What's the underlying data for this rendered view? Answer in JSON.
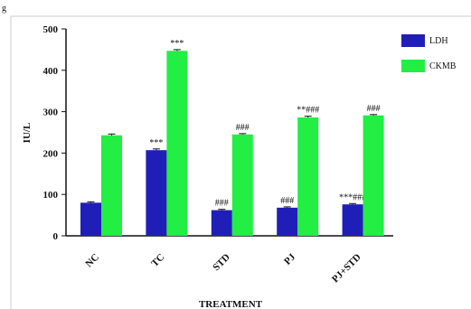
{
  "chart_data": {
    "type": "bar",
    "categories": [
      "NC",
      "TC",
      "STD",
      "PJ",
      "PJ+STD"
    ],
    "series": [
      {
        "name": "LDH",
        "color": "#1f1fb8",
        "values": [
          80,
          207,
          62,
          68,
          76
        ],
        "errors": [
          2,
          3,
          2,
          2,
          2
        ],
        "annotations": [
          "",
          "***",
          "###",
          "###",
          "***###"
        ]
      },
      {
        "name": "CKMB",
        "color": "#22ee44",
        "values": [
          243,
          447,
          245,
          286,
          291
        ],
        "errors": [
          3,
          3,
          2,
          3,
          2
        ],
        "annotations": [
          "",
          "***",
          "###",
          "**###",
          "###"
        ]
      }
    ],
    "xlabel": "TREATMENT",
    "ylabel": "IU/L",
    "ylim": [
      0,
      500
    ],
    "yticks": [
      0,
      100,
      200,
      300,
      400,
      500
    ],
    "legend_position": "top-right"
  },
  "corner_mark": "g"
}
